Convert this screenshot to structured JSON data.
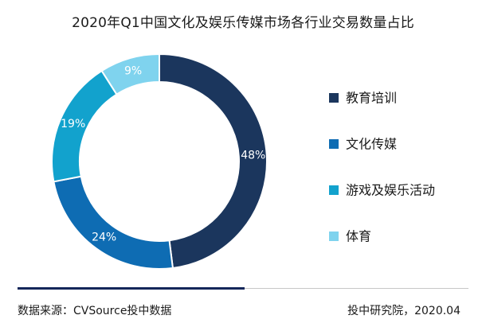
{
  "title": "2020年Q1中国文化及娱乐传媒市场各行业交易数量占比",
  "chart_data": {
    "type": "pie",
    "title": "2020年Q1中国文化及娱乐传媒市场各行业交易数量占比",
    "donut": true,
    "categories": [
      "教育培训",
      "文化传媒",
      "游戏及娱乐活动",
      "体育"
    ],
    "values": [
      48,
      24,
      19,
      9
    ],
    "labels": [
      "48%",
      "24%",
      "19%",
      "9%"
    ],
    "colors": [
      "#1b365d",
      "#0e6cb3",
      "#12a2cd",
      "#7fd3ee"
    ],
    "legend_position": "right"
  },
  "footer": {
    "source": "数据来源：CVSource投中数据",
    "credit": "投中研究院，2020.04"
  }
}
